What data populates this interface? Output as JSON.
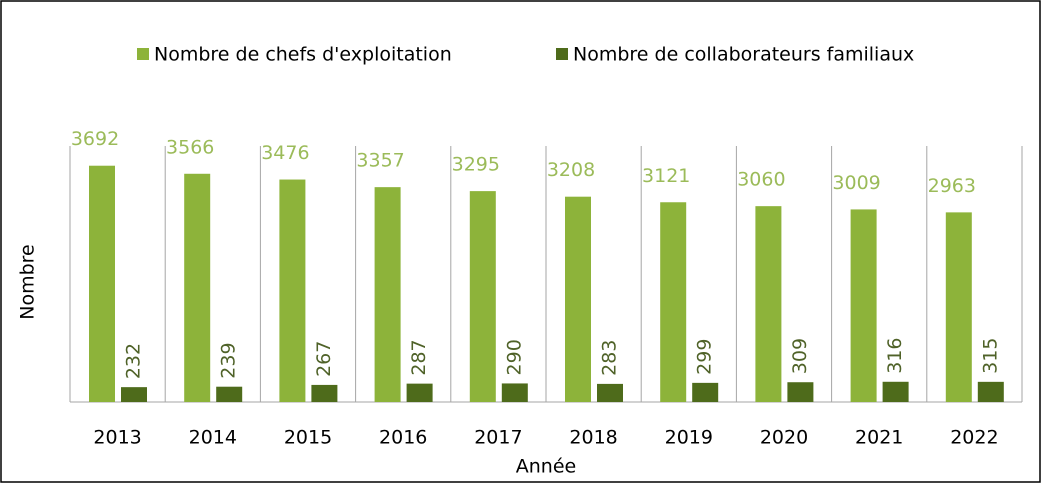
{
  "chart_data": {
    "type": "bar",
    "categories": [
      "2013",
      "2014",
      "2015",
      "2016",
      "2017",
      "2018",
      "2019",
      "2020",
      "2021",
      "2022"
    ],
    "series": [
      {
        "name": "Nombre de chefs d'exploitation",
        "color": "#8db33a",
        "values": [
          3692,
          3566,
          3476,
          3357,
          3295,
          3208,
          3121,
          3060,
          3009,
          2963
        ]
      },
      {
        "name": "Nombre de collaborateurs familiaux",
        "color": "#4e6b1b",
        "values": [
          232,
          239,
          267,
          287,
          290,
          283,
          299,
          309,
          316,
          315
        ]
      }
    ],
    "xlabel": "Année",
    "ylabel": "Nombre",
    "ylim": [
      0,
      4000
    ],
    "legend": "top"
  }
}
